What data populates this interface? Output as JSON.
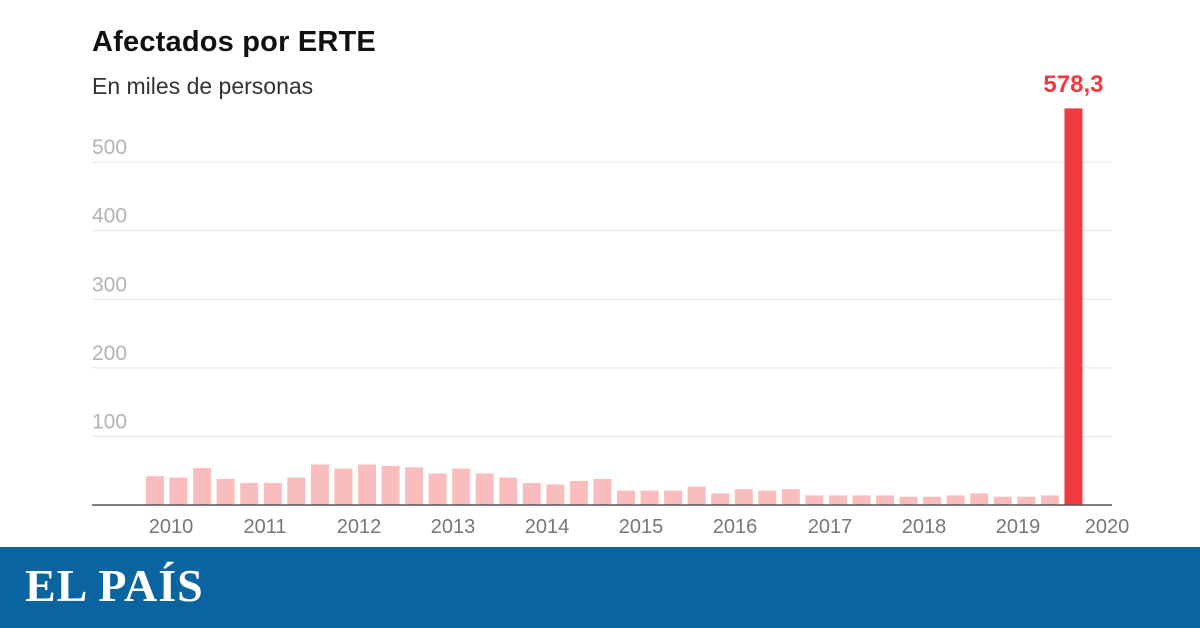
{
  "chart_data": {
    "type": "bar",
    "title": "Afectados por ERTE",
    "subtitle": "En miles de personas",
    "xlabel": "",
    "ylabel": "",
    "ylim": [
      0,
      578.3
    ],
    "yticks": [
      100,
      200,
      300,
      400,
      500
    ],
    "xticks": [
      "2010",
      "2011",
      "2012",
      "2013",
      "2014",
      "2015",
      "2016",
      "2017",
      "2018",
      "2019",
      "2020"
    ],
    "values": [
      42,
      40,
      54,
      38,
      32,
      32,
      40,
      59,
      53,
      59,
      57,
      55,
      46,
      53,
      46,
      40,
      32,
      30,
      35,
      38,
      21,
      21,
      21,
      27,
      17,
      23,
      21,
      23,
      14,
      14,
      14,
      14,
      12,
      12,
      14,
      17,
      12,
      12,
      14,
      578.3
    ],
    "highlight": {
      "index": 39,
      "label": "578,3",
      "color": "#f03a3f"
    },
    "bar_color": "#f9bdbd",
    "grid": true
  },
  "brand": {
    "logo": "EL PAÍS",
    "color": "#0a64a0"
  }
}
